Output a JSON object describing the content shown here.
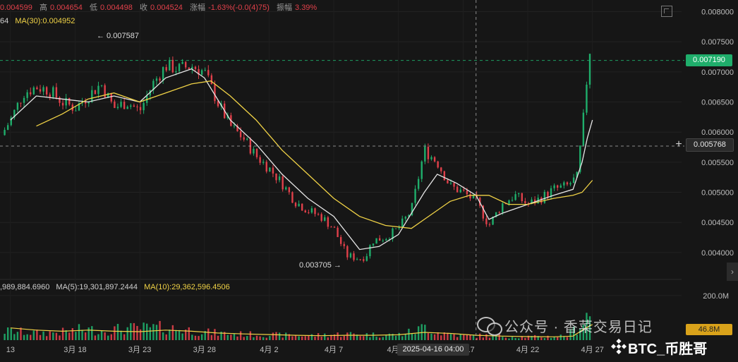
{
  "ohlc": {
    "open_value": "0.004599",
    "high_label": "高",
    "high_value": "0.004654",
    "low_label": "低",
    "low_value": "0.004498",
    "close_label": "收",
    "close_value": "0.004524",
    "change_label": "涨幅",
    "change_value": "-1.63%(-0.0(4)75)",
    "amplitude_label": "振幅",
    "amplitude_value": "3.39%"
  },
  "ma_line": {
    "prev_fragment": "64",
    "ma30": "MA(30):0.004952"
  },
  "volume_line": {
    "vol_fragment": ",989,884.6960",
    "ma5": "MA(5):19,301,897.2444",
    "ma10": "MA(10):29,362,596.4506"
  },
  "annotations": {
    "high_marker": "← 0.007587",
    "low_marker": "0.003705 →"
  },
  "price_tags": {
    "current": "0.007190",
    "crosshair": "0.005768",
    "volume_current": "46.8M"
  },
  "crosshair_time": "2025-04-16 04:00",
  "colors": {
    "background": "#161616",
    "up": "#1fae6b",
    "down": "#e0404a",
    "ma_yellow": "#f0d246",
    "ma_white": "#e6e6e6"
  },
  "watermark": {
    "text": "公众号 · 香菜交易日记",
    "brand": "BTC_币胜哥"
  },
  "chart_data": {
    "type": "candlestick",
    "price_axis": {
      "ticks": [
        "0.008000",
        "0.007500",
        "0.007000",
        "0.006500",
        "0.006000",
        "0.005500",
        "0.005000",
        "0.004500",
        "0.004000"
      ],
      "ylim": [
        0.0036,
        0.0081
      ]
    },
    "volume_axis": {
      "ticks": [
        "200.0M"
      ],
      "ylim": [
        0,
        260
      ]
    },
    "x_ticks": [
      "13",
      "3月 18",
      "3月 23",
      "3月 28",
      "4月 2",
      "4月 7",
      "4月 12",
      "4月 17",
      "4月 22",
      "4月 27"
    ],
    "x_days": [
      13,
      18,
      23,
      28,
      33,
      38,
      43,
      48,
      53,
      58
    ],
    "x_range": [
      12.3,
      65
    ],
    "key_levels": [
      0.00719,
      0.005768
    ],
    "close_path": [
      [
        12.3,
        0.00595
      ],
      [
        13,
        0.0062
      ],
      [
        14,
        0.00665
      ],
      [
        15,
        0.00675
      ],
      [
        16,
        0.0067
      ],
      [
        17,
        0.0065
      ],
      [
        18,
        0.0064
      ],
      [
        19,
        0.0066
      ],
      [
        20,
        0.0068
      ],
      [
        21,
        0.0064
      ],
      [
        22,
        0.0065
      ],
      [
        23,
        0.00635
      ],
      [
        24,
        0.0068
      ],
      [
        25,
        0.0071
      ],
      [
        26,
        0.00705
      ],
      [
        27,
        0.0071
      ],
      [
        28,
        0.007
      ],
      [
        29,
        0.0065
      ],
      [
        30,
        0.0061
      ],
      [
        31,
        0.0059
      ],
      [
        32,
        0.0056
      ],
      [
        33,
        0.0054
      ],
      [
        34,
        0.00515
      ],
      [
        35,
        0.00485
      ],
      [
        36,
        0.0047
      ],
      [
        37,
        0.0046
      ],
      [
        38,
        0.0044
      ],
      [
        39,
        0.00395
      ],
      [
        40,
        0.0039
      ],
      [
        40.5,
        0.00395
      ],
      [
        41,
        0.0042
      ],
      [
        42,
        0.00425
      ],
      [
        43,
        0.0044
      ],
      [
        44,
        0.0047
      ],
      [
        45,
        0.0057
      ],
      [
        46,
        0.0055
      ],
      [
        47,
        0.0051
      ],
      [
        48,
        0.005
      ],
      [
        49,
        0.00485
      ],
      [
        50,
        0.00445
      ],
      [
        51,
        0.0048
      ],
      [
        52,
        0.00495
      ],
      [
        53,
        0.0048
      ],
      [
        54,
        0.0049
      ],
      [
        55,
        0.00505
      ],
      [
        56,
        0.0051
      ],
      [
        56.8,
        0.00525
      ],
      [
        57.2,
        0.006
      ],
      [
        57.6,
        0.0069
      ],
      [
        57.8,
        0.0073
      ],
      [
        58.0,
        0.00719
      ]
    ],
    "ma7_path": [
      [
        13,
        0.0062
      ],
      [
        15,
        0.0066
      ],
      [
        17,
        0.00655
      ],
      [
        19,
        0.0065
      ],
      [
        21,
        0.0066
      ],
      [
        23,
        0.0065
      ],
      [
        25,
        0.0069
      ],
      [
        27,
        0.00705
      ],
      [
        28,
        0.0069
      ],
      [
        30,
        0.0062
      ],
      [
        32,
        0.0058
      ],
      [
        34,
        0.0053
      ],
      [
        36,
        0.0049
      ],
      [
        38,
        0.0046
      ],
      [
        40,
        0.00405
      ],
      [
        41.5,
        0.0041
      ],
      [
        43,
        0.0043
      ],
      [
        45,
        0.005
      ],
      [
        46,
        0.0053
      ],
      [
        47.5,
        0.00515
      ],
      [
        49,
        0.00495
      ],
      [
        50,
        0.00455
      ],
      [
        51,
        0.00465
      ],
      [
        53,
        0.0048
      ],
      [
        55,
        0.00495
      ],
      [
        56.5,
        0.00505
      ],
      [
        57.2,
        0.0055
      ],
      [
        57.6,
        0.0059
      ],
      [
        58.0,
        0.0062
      ]
    ],
    "ma30_path": [
      [
        15,
        0.0061
      ],
      [
        17,
        0.0063
      ],
      [
        19,
        0.00655
      ],
      [
        21,
        0.00665
      ],
      [
        23,
        0.0065
      ],
      [
        25,
        0.00665
      ],
      [
        27,
        0.0068
      ],
      [
        28.5,
        0.00685
      ],
      [
        30,
        0.0066
      ],
      [
        32,
        0.0062
      ],
      [
        34,
        0.0057
      ],
      [
        36,
        0.0053
      ],
      [
        38,
        0.0049
      ],
      [
        40,
        0.0046
      ],
      [
        42,
        0.00445
      ],
      [
        44,
        0.0044
      ],
      [
        45,
        0.00455
      ],
      [
        46,
        0.0047
      ],
      [
        47,
        0.00485
      ],
      [
        48.5,
        0.00495
      ],
      [
        50,
        0.00495
      ],
      [
        51.5,
        0.0048
      ],
      [
        53,
        0.0048
      ],
      [
        55,
        0.0049
      ],
      [
        56.5,
        0.00495
      ],
      [
        57.2,
        0.005
      ],
      [
        58.0,
        0.0052
      ]
    ],
    "volume_spikes": [
      [
        13,
        50
      ],
      [
        15,
        40
      ],
      [
        17,
        45
      ],
      [
        18.5,
        60
      ],
      [
        20,
        55
      ],
      [
        22,
        65
      ],
      [
        25,
        70
      ],
      [
        27,
        55
      ],
      [
        28,
        45
      ],
      [
        30,
        35
      ],
      [
        33,
        30
      ],
      [
        36,
        25
      ],
      [
        39,
        35
      ],
      [
        41,
        30
      ],
      [
        43,
        30
      ],
      [
        44.5,
        55
      ],
      [
        45,
        80
      ],
      [
        46,
        45
      ],
      [
        48,
        25
      ],
      [
        50,
        25
      ],
      [
        52,
        20
      ],
      [
        54,
        18
      ],
      [
        56,
        25
      ],
      [
        57.2,
        90
      ],
      [
        57.6,
        165
      ],
      [
        57.9,
        120
      ]
    ],
    "volume_ma_path": [
      [
        13,
        55
      ],
      [
        15,
        45
      ],
      [
        17,
        40
      ],
      [
        19,
        45
      ],
      [
        21,
        40
      ],
      [
        23,
        38
      ],
      [
        25,
        45
      ],
      [
        27,
        40
      ],
      [
        29,
        32
      ],
      [
        31,
        28
      ],
      [
        33,
        25
      ],
      [
        35,
        22
      ],
      [
        37,
        20
      ],
      [
        39,
        22
      ],
      [
        41,
        22
      ],
      [
        43,
        24
      ],
      [
        45,
        35
      ],
      [
        47,
        30
      ],
      [
        49,
        22
      ],
      [
        51,
        18
      ],
      [
        53,
        16
      ],
      [
        55,
        15
      ],
      [
        56.5,
        18
      ],
      [
        57.5,
        55
      ],
      [
        58.0,
        70
      ]
    ]
  }
}
